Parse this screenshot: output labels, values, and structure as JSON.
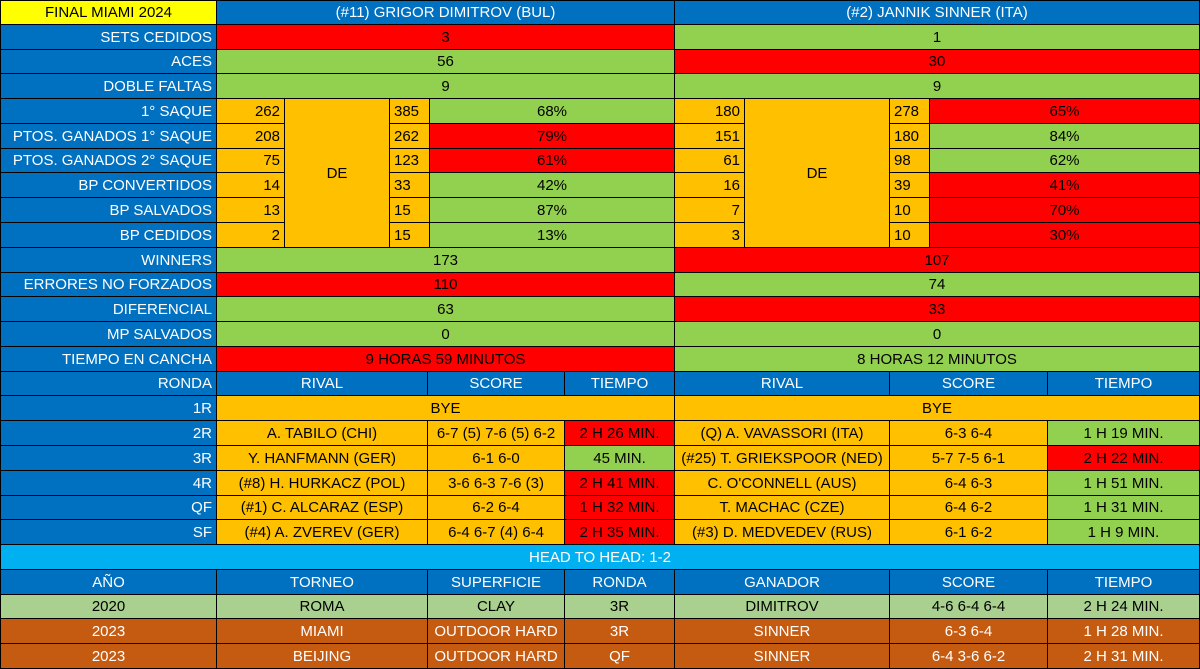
{
  "header": {
    "title": "FINAL MIAMI 2024",
    "player1": "(#11) GRIGOR DIMITROV (BUL)",
    "player2": "(#2) JANNIK SINNER (ITA)"
  },
  "de_label": "DE",
  "stats": [
    {
      "label": "SETS CEDIDOS",
      "p1": "3",
      "p2": "1"
    },
    {
      "label": "ACES",
      "p1": "56",
      "p2": "30"
    },
    {
      "label": "DOBLE FALTAS",
      "p1": "9",
      "p2": "9"
    },
    {
      "label": "1° SAQUE",
      "p1": [
        "262",
        "385",
        "68%"
      ],
      "p2": [
        "180",
        "278",
        "65%"
      ]
    },
    {
      "label": "PTOS. GANADOS 1° SAQUE",
      "p1": [
        "208",
        "262",
        "79%"
      ],
      "p2": [
        "151",
        "180",
        "84%"
      ]
    },
    {
      "label": "PTOS. GANADOS 2° SAQUE",
      "p1": [
        "75",
        "123",
        "61%"
      ],
      "p2": [
        "61",
        "98",
        "62%"
      ]
    },
    {
      "label": "BP CONVERTIDOS",
      "p1": [
        "14",
        "33",
        "42%"
      ],
      "p2": [
        "16",
        "39",
        "41%"
      ]
    },
    {
      "label": "BP SALVADOS",
      "p1": [
        "13",
        "15",
        "87%"
      ],
      "p2": [
        "7",
        "10",
        "70%"
      ]
    },
    {
      "label": "BP CEDIDOS",
      "p1": [
        "2",
        "15",
        "13%"
      ],
      "p2": [
        "3",
        "10",
        "30%"
      ]
    },
    {
      "label": "WINNERS",
      "p1": "173",
      "p2": "107"
    },
    {
      "label": "ERRORES NO FORZADOS",
      "p1": "110",
      "p2": "74"
    },
    {
      "label": "DIFERENCIAL",
      "p1": "63",
      "p2": "33"
    },
    {
      "label": "MP SALVADOS",
      "p1": "0",
      "p2": "0"
    },
    {
      "label": "TIEMPO EN CANCHA",
      "p1": "9 HORAS 59 MINUTOS",
      "p2": "8 HORAS 12 MINUTOS"
    }
  ],
  "rounds_header": [
    "RONDA",
    "RIVAL",
    "SCORE",
    "TIEMPO",
    "RIVAL",
    "SCORE",
    "TIEMPO"
  ],
  "rounds": [
    {
      "round": "1R",
      "p1": [
        "BYE"
      ],
      "p2": [
        "BYE"
      ]
    },
    {
      "round": "2R",
      "p1": [
        "A. TABILO (CHI)",
        "6-7 (5) 7-6 (5) 6-2",
        "2 H 26 MIN."
      ],
      "p2": [
        "(Q) A. VAVASSORI (ITA)",
        "6-3 6-4",
        "1 H 19 MIN."
      ]
    },
    {
      "round": "3R",
      "p1": [
        "Y. HANFMANN (GER)",
        "6-1 6-0",
        "45 MIN."
      ],
      "p2": [
        "(#25) T. GRIEKSPOOR (NED)",
        "5-7 7-5 6-1",
        "2 H 22 MIN."
      ]
    },
    {
      "round": "4R",
      "p1": [
        "(#8) H. HURKACZ (POL)",
        "3-6 6-3 7-6 (3)",
        "2 H 41 MIN."
      ],
      "p2": [
        "C. O'CONNELL (AUS)",
        "6-4 6-3",
        "1 H 51 MIN."
      ]
    },
    {
      "round": "QF",
      "p1": [
        "(#1) C. ALCARAZ (ESP)",
        "6-2 6-4",
        "1 H 32 MIN."
      ],
      "p2": [
        "T. MACHAC (CZE)",
        "6-4 6-2",
        "1 H 31 MIN."
      ]
    },
    {
      "round": "SF",
      "p1": [
        "(#4) A. ZVEREV (GER)",
        "6-4 6-7 (4) 6-4",
        "2 H 35 MIN."
      ],
      "p2": [
        "(#3) D. MEDVEDEV (RUS)",
        "6-1 6-2",
        "1 H 9 MIN."
      ]
    }
  ],
  "h2h_title": "HEAD TO HEAD: 1-2",
  "h2h_header": [
    "AÑO",
    "TORNEO",
    "SUPERFICIE",
    "RONDA",
    "GANADOR",
    "SCORE",
    "TIEMPO"
  ],
  "h2h_rows": [
    [
      "2020",
      "ROMA",
      "CLAY",
      "3R",
      "DIMITROV",
      "4-6 6-4 6-4",
      "2 H 24 MIN."
    ],
    [
      "2023",
      "MIAMI",
      "OUTDOOR HARD",
      "3R",
      "SINNER",
      "6-3 6-4",
      "1 H 28 MIN."
    ],
    [
      "2023",
      "BEIJING",
      "OUTDOOR HARD",
      "QF",
      "SINNER",
      "6-4 3-6 6-2",
      "2 H 31 MIN."
    ]
  ]
}
